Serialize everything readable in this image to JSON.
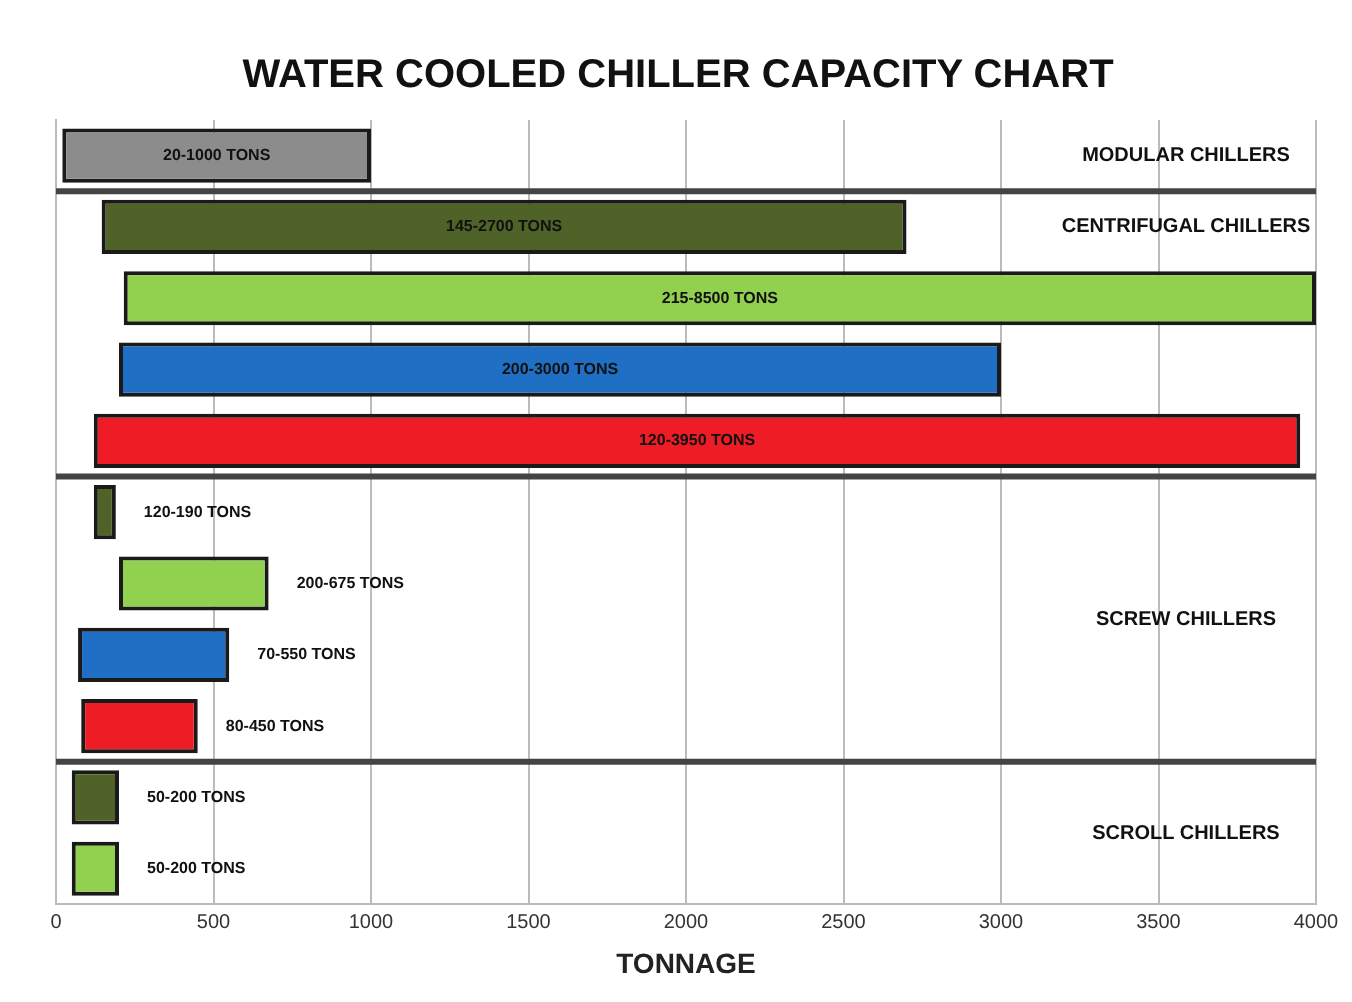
{
  "chart_data": {
    "type": "bar",
    "orientation": "horizontal",
    "title": "WATER COOLED CHILLER CAPACITY CHART",
    "xlabel": "TONNAGE",
    "categories": [
      null,
      null,
      null,
      null,
      null,
      null,
      null,
      null,
      null,
      null,
      null
    ],
    "base": [
      20,
      145,
      215,
      200,
      120,
      120,
      200,
      70,
      80,
      50,
      50
    ],
    "values": [
      980,
      2555,
      3785,
      2800,
      3830,
      70,
      475,
      480,
      370,
      150,
      150
    ],
    "colors": [
      "#8c8c8c",
      "#4f6228",
      "#92d050",
      "#1f6fc5",
      "#ee1c25",
      "#4f6228",
      "#92d050",
      "#1f6fc5",
      "#ee1c25",
      "#4f6228",
      "#92d050"
    ],
    "value_labels": [
      "20-1000 TONS",
      "145-2700 TONS",
      "215-8500 TONS",
      "200-3000 TONS",
      "120-3950 TONS",
      "120-190 TONS",
      "200-675 TONS",
      "70-550 TONS",
      "80-450 TONS",
      "50-200 TONS",
      "50-200 TONS"
    ],
    "annotations": [
      "MODULAR CHILLERS",
      "CENTRIFUGAL CHILLERS",
      "SCREW CHILLERS",
      "SCROLL CHILLERS"
    ],
    "xlim": [
      0,
      4000
    ],
    "xticks": [
      0,
      500,
      1000,
      1500,
      2000,
      2500,
      3000,
      3500,
      4000
    ],
    "grid": "x",
    "legend": false
  }
}
